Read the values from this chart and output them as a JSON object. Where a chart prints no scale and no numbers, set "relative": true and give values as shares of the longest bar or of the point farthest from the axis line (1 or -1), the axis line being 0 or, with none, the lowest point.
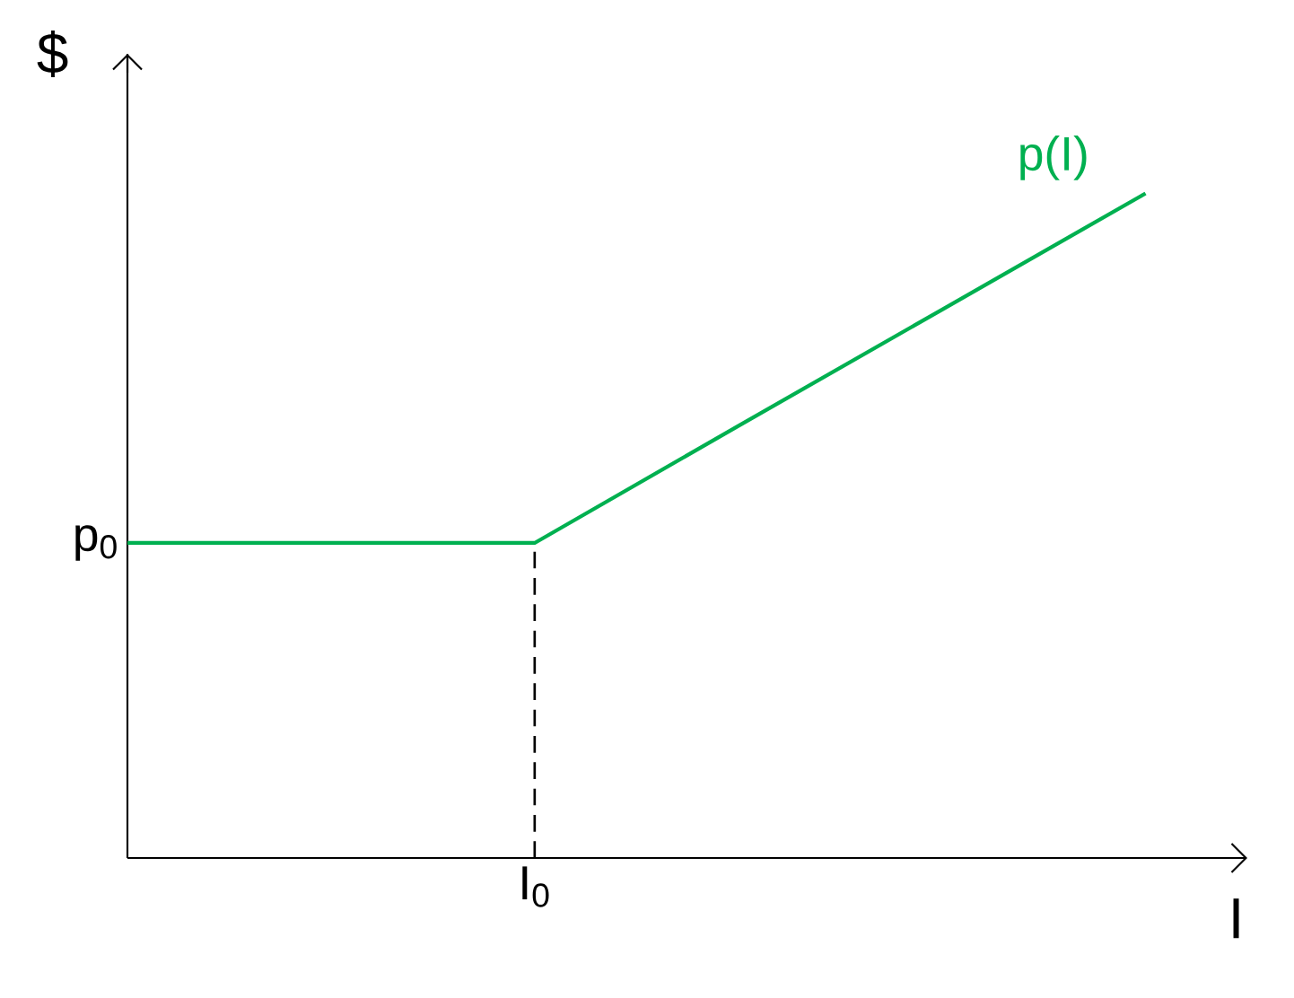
{
  "chart_data": {
    "type": "line",
    "relative": true,
    "xlabel": "I",
    "ylabel": "$",
    "marker": "none",
    "categories": [
      null,
      null,
      null,
      null,
      null,
      null
    ],
    "series": [
      {
        "name": "p(I)",
        "color": "#00b050",
        "values": [
          0.474,
          0.474,
          0.474,
          0.65,
          0.825,
          1
        ],
        "line_style": "solid"
      }
    ],
    "annotations": [
      "p$_{0}$",
      "I$_{0}$"
    ]
  }
}
